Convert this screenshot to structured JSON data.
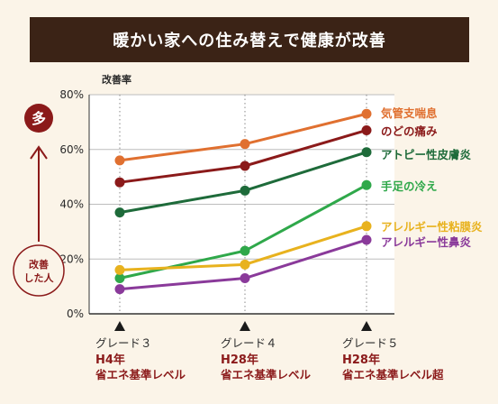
{
  "banner": {
    "title": "暖かい家への住み替えで健康が改善"
  },
  "side": {
    "top": "多",
    "bottom_line1": "改善",
    "bottom_line2": "した人"
  },
  "colors": {
    "background": "#fbf4e8",
    "banner": "#3b2316",
    "accent": "#8b1a1a"
  },
  "chart_data": {
    "type": "line",
    "ylabel": "改善率",
    "ylim": [
      0,
      80
    ],
    "y_ticks": [
      "80%",
      "60%",
      "40%",
      "20%",
      "0%"
    ],
    "y_tick_values": [
      80,
      60,
      40,
      20,
      0
    ],
    "grid": true,
    "categories": [
      {
        "grade": "グレード３",
        "year": "H4年",
        "standard": "省エネ基準レベル"
      },
      {
        "grade": "グレード４",
        "year": "H28年",
        "standard": "省エネ基準レベル"
      },
      {
        "grade": "グレード５",
        "year": "H28年",
        "standard": "省エネ基準レベル超"
      }
    ],
    "series": [
      {
        "name": "気管支喘息",
        "color": "#e07030",
        "values": [
          56,
          62,
          73
        ]
      },
      {
        "name": "のどの痛み",
        "color": "#8b1a1a",
        "values": [
          48,
          54,
          67
        ]
      },
      {
        "name": "アトピー性皮膚炎",
        "color": "#1e6b3a",
        "values": [
          37,
          45,
          59
        ]
      },
      {
        "name": "手足の冷え",
        "color": "#2fa84a",
        "values": [
          13,
          23,
          47
        ]
      },
      {
        "name": "アレルギー性粘膜炎",
        "color": "#e8b21e",
        "values": [
          16,
          18,
          32
        ]
      },
      {
        "name": "アレルギー性鼻炎",
        "color": "#8a3a9a",
        "values": [
          9,
          13,
          27
        ]
      }
    ]
  }
}
